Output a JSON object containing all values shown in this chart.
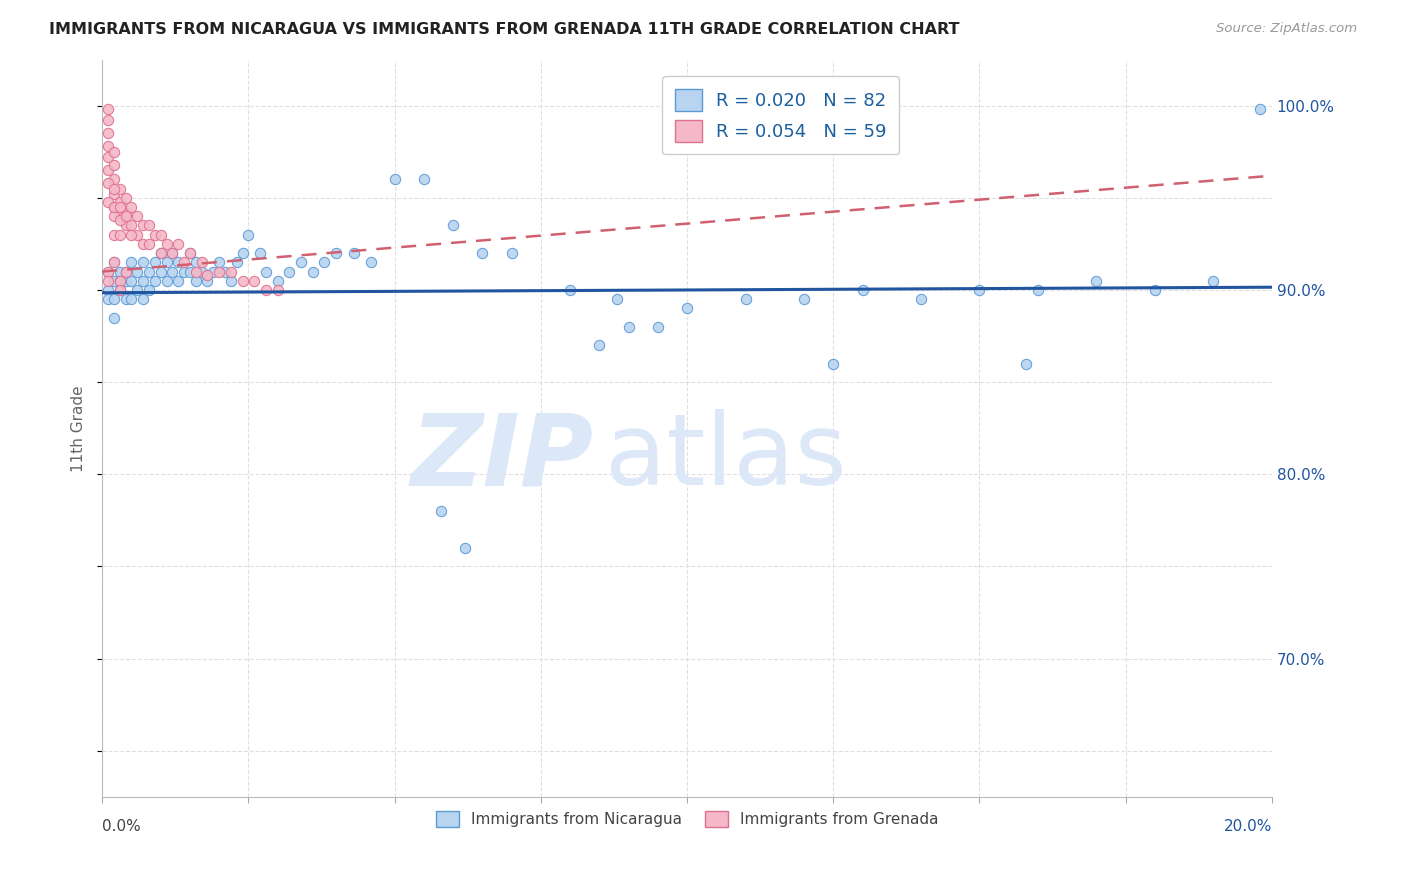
{
  "title": "IMMIGRANTS FROM NICARAGUA VS IMMIGRANTS FROM GRENADA 11TH GRADE CORRELATION CHART",
  "source": "Source: ZipAtlas.com",
  "ylabel": "11th Grade",
  "ylabel_right_labels": [
    "100.0%",
    "90.0%",
    "80.0%",
    "70.0%"
  ],
  "ylabel_right_values": [
    1.0,
    0.9,
    0.8,
    0.7
  ],
  "xmin": 0.0,
  "xmax": 0.2,
  "ymin": 0.625,
  "ymax": 1.025,
  "color_nicaragua": "#b8d4f0",
  "color_nicaragua_edge": "#5b9bd5",
  "color_grenada": "#f4b8c8",
  "color_grenada_edge": "#e07090",
  "color_line_nicaragua": "#2155a0",
  "color_line_grenada": "#d06070",
  "grid_color": "#e0e0e0",
  "background_color": "#ffffff",
  "watermark_color": "#dce8f8",
  "nicaragua_x": [
    0.001,
    0.001,
    0.001,
    0.002,
    0.002,
    0.002,
    0.002,
    0.003,
    0.003,
    0.003,
    0.004,
    0.004,
    0.004,
    0.005,
    0.005,
    0.005,
    0.006,
    0.006,
    0.007,
    0.007,
    0.007,
    0.008,
    0.008,
    0.009,
    0.009,
    0.01,
    0.01,
    0.011,
    0.011,
    0.012,
    0.012,
    0.013,
    0.013,
    0.014,
    0.015,
    0.015,
    0.016,
    0.016,
    0.017,
    0.018,
    0.019,
    0.02,
    0.021,
    0.022,
    0.023,
    0.024,
    0.025,
    0.027,
    0.028,
    0.03,
    0.032,
    0.034,
    0.036,
    0.038,
    0.04,
    0.043,
    0.046,
    0.05,
    0.055,
    0.06,
    0.065,
    0.07,
    0.08,
    0.085,
    0.09,
    0.095,
    0.1,
    0.11,
    0.12,
    0.13,
    0.14,
    0.15,
    0.16,
    0.17,
    0.18,
    0.19,
    0.058,
    0.062,
    0.125,
    0.198,
    0.158,
    0.088
  ],
  "nicaragua_y": [
    0.91,
    0.9,
    0.895,
    0.915,
    0.905,
    0.895,
    0.885,
    0.91,
    0.905,
    0.9,
    0.91,
    0.905,
    0.895,
    0.915,
    0.905,
    0.895,
    0.91,
    0.9,
    0.915,
    0.905,
    0.895,
    0.91,
    0.9,
    0.915,
    0.905,
    0.92,
    0.91,
    0.915,
    0.905,
    0.92,
    0.91,
    0.915,
    0.905,
    0.91,
    0.92,
    0.91,
    0.915,
    0.905,
    0.91,
    0.905,
    0.91,
    0.915,
    0.91,
    0.905,
    0.915,
    0.92,
    0.93,
    0.92,
    0.91,
    0.905,
    0.91,
    0.915,
    0.91,
    0.915,
    0.92,
    0.92,
    0.915,
    0.96,
    0.96,
    0.935,
    0.92,
    0.92,
    0.9,
    0.87,
    0.88,
    0.88,
    0.89,
    0.895,
    0.895,
    0.9,
    0.895,
    0.9,
    0.9,
    0.905,
    0.9,
    0.905,
    0.78,
    0.76,
    0.86,
    0.998,
    0.86,
    0.895
  ],
  "grenada_x": [
    0.001,
    0.001,
    0.001,
    0.001,
    0.001,
    0.001,
    0.002,
    0.002,
    0.002,
    0.002,
    0.002,
    0.003,
    0.003,
    0.003,
    0.004,
    0.004,
    0.004,
    0.005,
    0.005,
    0.006,
    0.006,
    0.007,
    0.007,
    0.008,
    0.008,
    0.009,
    0.01,
    0.01,
    0.011,
    0.012,
    0.013,
    0.014,
    0.015,
    0.016,
    0.017,
    0.018,
    0.02,
    0.022,
    0.024,
    0.026,
    0.028,
    0.03,
    0.001,
    0.001,
    0.002,
    0.003,
    0.003,
    0.004,
    0.002,
    0.002,
    0.001,
    0.001,
    0.002,
    0.002,
    0.003,
    0.003,
    0.003,
    0.004,
    0.005
  ],
  "grenada_y": [
    0.998,
    0.992,
    0.985,
    0.978,
    0.972,
    0.965,
    0.975,
    0.968,
    0.96,
    0.952,
    0.945,
    0.955,
    0.948,
    0.94,
    0.95,
    0.942,
    0.935,
    0.945,
    0.935,
    0.94,
    0.93,
    0.935,
    0.925,
    0.935,
    0.925,
    0.93,
    0.93,
    0.92,
    0.925,
    0.92,
    0.925,
    0.915,
    0.92,
    0.91,
    0.915,
    0.908,
    0.91,
    0.91,
    0.905,
    0.905,
    0.9,
    0.9,
    0.91,
    0.905,
    0.915,
    0.905,
    0.9,
    0.91,
    0.94,
    0.93,
    0.958,
    0.948,
    0.955,
    0.945,
    0.945,
    0.938,
    0.93,
    0.94,
    0.93
  ]
}
